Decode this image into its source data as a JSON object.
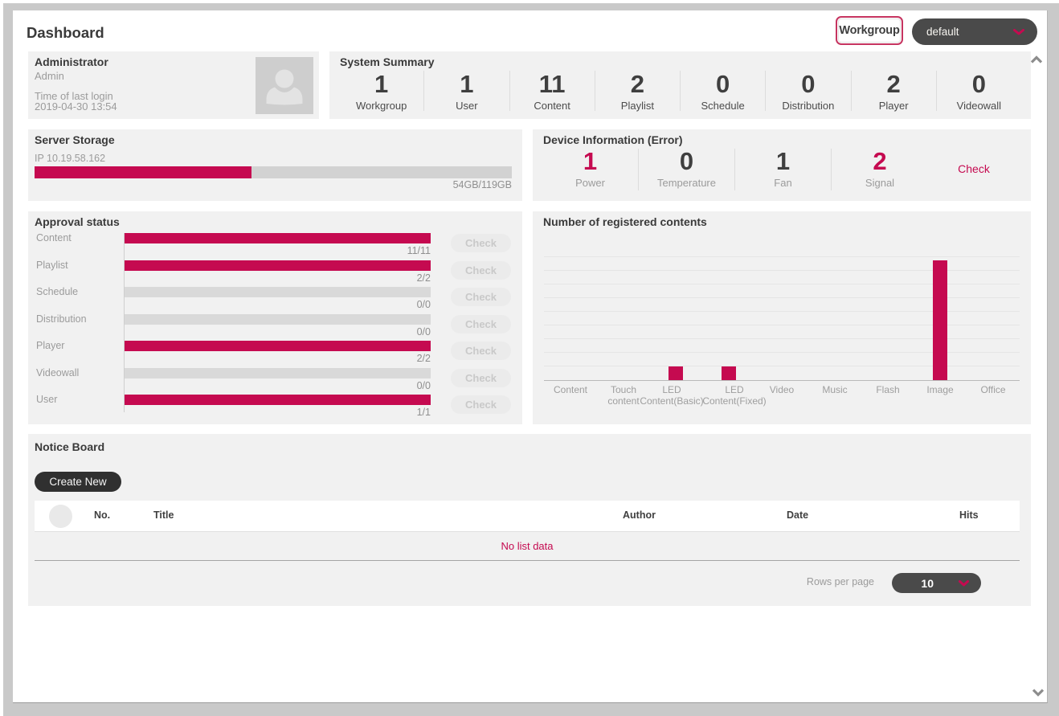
{
  "page": {
    "title": "Dashboard"
  },
  "header": {
    "workgroup_button_label": "Workgroup",
    "workgroup_select_value": "default"
  },
  "administrator": {
    "title": "Administrator",
    "username": "Admin",
    "last_login_label": "Time of last login",
    "last_login_value": "2019-04-30 13:54"
  },
  "system_summary": {
    "title": "System Summary",
    "stats": [
      {
        "label": "Workgroup",
        "value": "1"
      },
      {
        "label": "User",
        "value": "1"
      },
      {
        "label": "Content",
        "value": "11"
      },
      {
        "label": "Playlist",
        "value": "2"
      },
      {
        "label": "Schedule",
        "value": "0"
      },
      {
        "label": "Distribution",
        "value": "0"
      },
      {
        "label": "Player",
        "value": "2"
      },
      {
        "label": "Videowall",
        "value": "0"
      }
    ]
  },
  "server_storage": {
    "title": "Server Storage",
    "ip": "IP 10.19.58.162",
    "usage_label": "54GB/119GB",
    "used_gb": 54,
    "total_gb": 119
  },
  "device_information": {
    "title": "Device Information (Error)",
    "stats": [
      {
        "label": "Power",
        "value": "1",
        "alert": true
      },
      {
        "label": "Temperature",
        "value": "0",
        "alert": false
      },
      {
        "label": "Fan",
        "value": "1",
        "alert": false
      },
      {
        "label": "Signal",
        "value": "2",
        "alert": true
      }
    ],
    "check_label": "Check"
  },
  "approval_status": {
    "title": "Approval status",
    "check_label": "Check",
    "rows": [
      {
        "label": "Content",
        "approved": 11,
        "total": 11,
        "value": "11/11"
      },
      {
        "label": "Playlist",
        "approved": 2,
        "total": 2,
        "value": "2/2"
      },
      {
        "label": "Schedule",
        "approved": 0,
        "total": 0,
        "value": "0/0"
      },
      {
        "label": "Distribution",
        "approved": 0,
        "total": 0,
        "value": "0/0"
      },
      {
        "label": "Player",
        "approved": 2,
        "total": 2,
        "value": "2/2"
      },
      {
        "label": "Videowall",
        "approved": 0,
        "total": 0,
        "value": "0/0"
      },
      {
        "label": "User",
        "approved": 1,
        "total": 1,
        "value": "1/1"
      }
    ]
  },
  "chart_data": {
    "type": "bar",
    "title": "Number of registered contents",
    "categories": [
      "Content",
      "Touch content",
      "LED Content(Basic)",
      "LED Content(Fixed)",
      "Video",
      "Music",
      "Flash",
      "Image",
      "Office"
    ],
    "values": [
      0,
      0,
      1,
      1,
      0,
      0,
      0,
      9,
      0
    ],
    "ylim": [
      0,
      10
    ],
    "grid": true,
    "legend": false,
    "bar_color": "#c50a50"
  },
  "notice_board": {
    "title": "Notice Board",
    "create_button_label": "Create New",
    "columns": [
      "No.",
      "Title",
      "Author",
      "Date",
      "Hits"
    ],
    "empty_message": "No list data",
    "rows_per_page_label": "Rows per page",
    "rows_per_page_value": "10"
  },
  "colors": {
    "accent": "#c50a50",
    "panel_background": "#f1f1f1",
    "dark_control": "#4a4a4a"
  }
}
